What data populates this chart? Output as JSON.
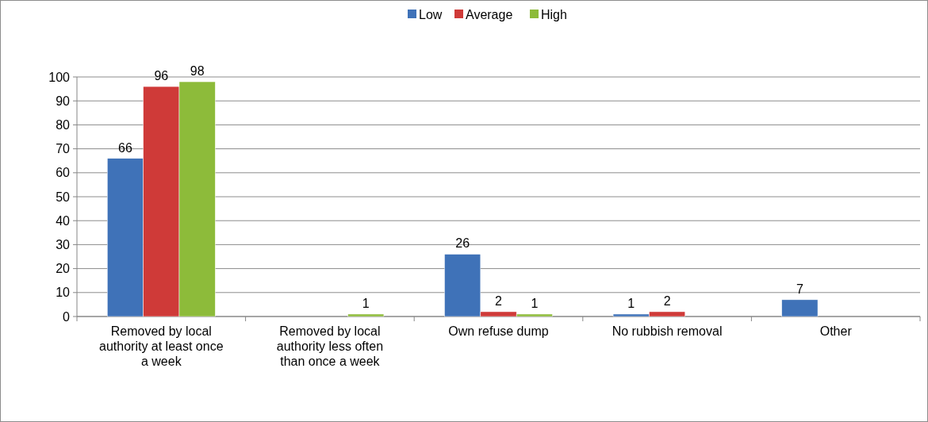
{
  "chart_data": {
    "type": "bar",
    "categories": [
      "Removed by local authority at least once a week",
      "Removed by local authority less often than once a week",
      "Own refuse dump",
      "No rubbish removal",
      "Other"
    ],
    "series": [
      {
        "name": "Low",
        "color": "#3f72b8",
        "values": [
          66,
          null,
          26,
          1,
          7
        ]
      },
      {
        "name": "Average",
        "color": "#cf3a38",
        "values": [
          96,
          null,
          2,
          2,
          null
        ]
      },
      {
        "name": "High",
        "color": "#8dbb3a",
        "values": [
          98,
          1,
          1,
          null,
          null
        ]
      }
    ],
    "ylim": [
      0,
      100
    ],
    "yticks": [
      0,
      10,
      20,
      30,
      40,
      50,
      60,
      70,
      80,
      90,
      100
    ],
    "grid": "y",
    "legend": "top",
    "data_labels": true
  }
}
